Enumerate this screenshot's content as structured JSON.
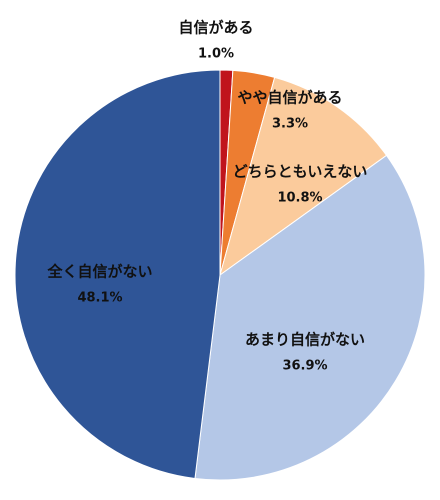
{
  "chart_data": {
    "type": "pie",
    "categories": [
      "自信がある",
      "やや自信がある",
      "どちらともいえない",
      "あまり自信がない",
      "全く自信がない"
    ],
    "values": [
      1.0,
      3.3,
      10.8,
      36.9,
      48.1
    ],
    "value_labels": [
      "1.0%",
      "3.3%",
      "10.8%",
      "36.9%",
      "48.1%"
    ],
    "colors": [
      "#c0141c",
      "#ed7d31",
      "#fbcb9c",
      "#b4c7e7",
      "#2f5597"
    ]
  }
}
